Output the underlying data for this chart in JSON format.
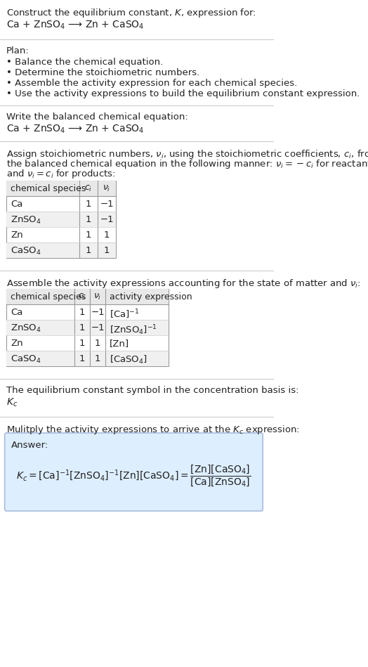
{
  "title_line1": "Construct the equilibrium constant, $K$, expression for:",
  "title_line2": "Ca + ZnSO$_4$ ⟶ Zn + CaSO$_4$",
  "plan_header": "Plan:",
  "plan_items": [
    "• Balance the chemical equation.",
    "• Determine the stoichiometric numbers.",
    "• Assemble the activity expression for each chemical species.",
    "• Use the activity expressions to build the equilibrium constant expression."
  ],
  "balanced_header": "Write the balanced chemical equation:",
  "balanced_eq": "Ca + ZnSO$_4$ ⟶ Zn + CaSO$_4$",
  "stoich_intro": "Assign stoichiometric numbers, $\\nu_i$, using the stoichiometric coefficients, $c_i$, from\nthe balanced chemical equation in the following manner: $\\nu_i = -c_i$ for reactants\nand $\\nu_i = c_i$ for products:",
  "table1_headers": [
    "chemical species",
    "$c_i$",
    "$\\nu_i$"
  ],
  "table1_rows": [
    [
      "Ca",
      "1",
      "−1"
    ],
    [
      "ZnSO$_4$",
      "1",
      "−1"
    ],
    [
      "Zn",
      "1",
      "1"
    ],
    [
      "CaSO$_4$",
      "1",
      "1"
    ]
  ],
  "activity_intro": "Assemble the activity expressions accounting for the state of matter and $\\nu_i$:",
  "table2_headers": [
    "chemical species",
    "$c_i$",
    "$\\nu_i$",
    "activity expression"
  ],
  "table2_rows": [
    [
      "Ca",
      "1",
      "−1",
      "[Ca]$^{-1}$"
    ],
    [
      "ZnSO$_4$",
      "1",
      "−1",
      "[ZnSO$_4$]$^{-1}$"
    ],
    [
      "Zn",
      "1",
      "1",
      "[Zn]"
    ],
    [
      "CaSO$_4$",
      "1",
      "1",
      "[CaSO$_4$]"
    ]
  ],
  "kc_intro": "The equilibrium constant symbol in the concentration basis is:",
  "kc_symbol": "$K_c$",
  "multiply_intro": "Mulitply the activity expressions to arrive at the $K_c$ expression:",
  "answer_label": "Answer:",
  "bg_color": "#ffffff",
  "answer_bg": "#ddeeff",
  "answer_border": "#aabbdd",
  "text_color": "#222222",
  "font_size": 9.5
}
